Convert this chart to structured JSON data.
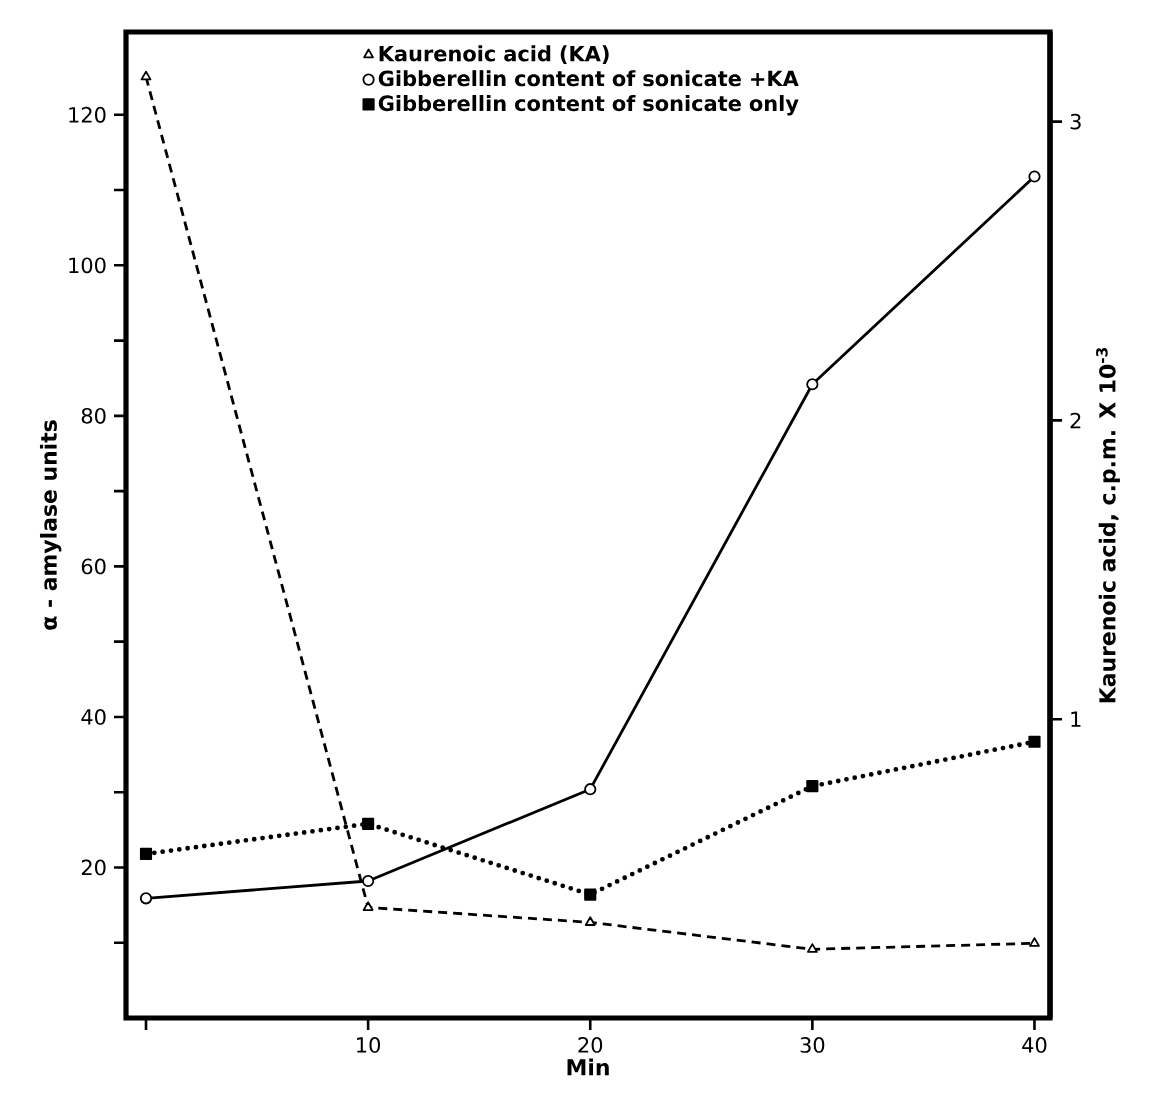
{
  "chart_data": {
    "type": "line",
    "xlabel": "Min",
    "ylabel": "α - amylase units",
    "y2label": "Kaurenoic acid,   c.p.m. X 10$^{-3}$",
    "legend": "top",
    "x": [
      0,
      10,
      20,
      30,
      40
    ],
    "xlim": [
      -0.9,
      40.7
    ],
    "xticks": [
      {
        "value": 0,
        "label": null
      },
      10,
      20,
      30,
      40
    ],
    "ylim": [
      0,
      131
    ],
    "yticks": [
      {
        "value": 10,
        "label": null
      },
      20,
      {
        "value": 30,
        "label": null
      },
      40,
      {
        "value": 50,
        "label": null
      },
      60,
      {
        "value": 70,
        "label": null
      },
      80,
      {
        "value": 90,
        "label": null
      },
      100,
      {
        "value": 110,
        "label": null
      },
      120
    ],
    "y2lim": [
      0,
      3.3
    ],
    "y2ticks": [
      1,
      2,
      3
    ],
    "series": [
      {
        "name": "Kaurenoic acid (KA)",
        "color": "#000000",
        "values": [
          3.15,
          0.37,
          0.32,
          0.23,
          0.25
        ],
        "marker": "triangle",
        "line_style": "dashed",
        "axis": "y2"
      },
      {
        "name": "Gibberellin content of sonicate +KA",
        "color": "#000000",
        "values": [
          15.9,
          18.2,
          30.4,
          84.2,
          111.8
        ],
        "marker": "circle",
        "line_style": "solid"
      },
      {
        "name": "Gibberellin content of sonicate only",
        "color": "#000000",
        "values": [
          21.8,
          25.8,
          16.4,
          30.8,
          36.7
        ],
        "marker": "square",
        "line_style": "dotted"
      }
    ]
  }
}
